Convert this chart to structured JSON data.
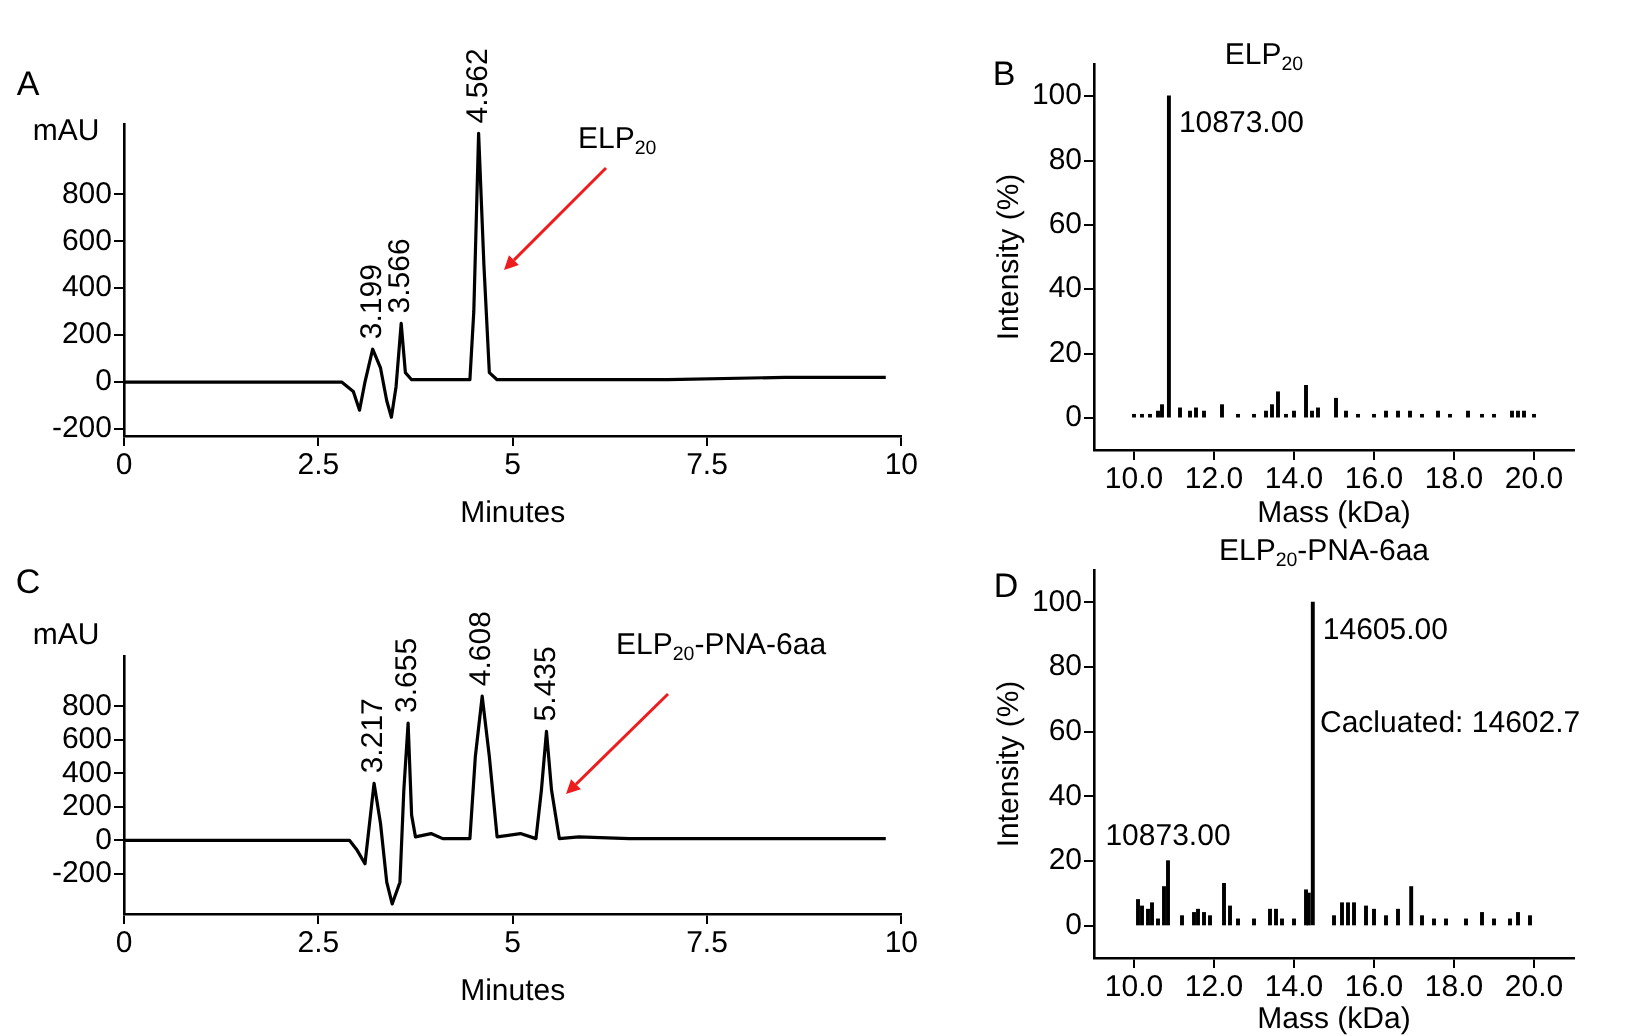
{
  "chart_data": [
    {
      "type": "line",
      "xlabel": "Minutes",
      "ylabel": "mAU",
      "annotations": [
        "A",
        "ELP$_{20}$",
        {
          "text": "3.199",
          "x": 3.199,
          "y": 140
        },
        {
          "text": "3.566",
          "x": 3.566,
          "y": 250
        },
        {
          "text": "4.562",
          "x": 4.562,
          "y": 1060
        }
      ],
      "xlim": [
        0,
        10
      ],
      "xticks": [
        0,
        2.5,
        5,
        7.5,
        10
      ],
      "ylim": [
        -230,
        1100
      ],
      "yticks": [
        -200,
        0,
        200,
        400,
        600,
        800
      ],
      "marker": "none",
      "series": [
        {
          "color": "#000000",
          "x": [
            0,
            1,
            2,
            2.8,
            2.95,
            3.03,
            3.1,
            3.199,
            3.3,
            3.38,
            3.44,
            3.5,
            3.566,
            3.62,
            3.7,
            4,
            4.45,
            4.5,
            4.562,
            4.63,
            4.7,
            4.8,
            5.5,
            7,
            8.5,
            9.8
          ],
          "values": [
            0,
            0,
            0,
            0,
            -40,
            -120,
            0,
            140,
            60,
            -80,
            -150,
            -20,
            250,
            40,
            10,
            10,
            10,
            300,
            1060,
            500,
            40,
            10,
            10,
            10,
            20,
            20
          ]
        }
      ]
    },
    {
      "type": "bar",
      "title": "ELP$_{20}$",
      "xlabel": "Mass (kDa)",
      "ylabel": "Intensity (%)",
      "annotations": [
        "B",
        {
          "text": "10873.00",
          "x": 10.873,
          "y": 100
        }
      ],
      "xlim": [
        9,
        21
      ],
      "xticks": [
        {
          "value": 10,
          "label": "10.0"
        },
        {
          "value": 12,
          "label": "12.0"
        },
        {
          "value": 14,
          "label": "14.0"
        },
        {
          "value": 16,
          "label": "16.0"
        },
        {
          "value": 18,
          "label": "18.0"
        },
        {
          "value": 20,
          "label": "20.0"
        }
      ],
      "ylim": [
        -10,
        110
      ],
      "yticks": [
        0,
        20,
        40,
        60,
        80,
        100
      ],
      "series": [
        {
          "color": "#000000",
          "x": [
            10,
            10.2,
            10.4,
            10.6,
            10.7,
            10.873,
            11.15,
            11.4,
            11.55,
            11.75,
            12.2,
            12.6,
            13,
            13.3,
            13.45,
            13.6,
            13.8,
            14,
            14.3,
            14.45,
            14.6,
            15.05,
            15.3,
            15.6,
            16,
            16.3,
            16.6,
            16.9,
            17.2,
            17.6,
            17.9,
            18.35,
            18.7,
            19,
            19.45,
            19.6,
            19.75,
            20
          ],
          "values": [
            1,
            1,
            1,
            2,
            4,
            100,
            3,
            2,
            3,
            2,
            4,
            1,
            1,
            2,
            4,
            8,
            1,
            2,
            10,
            2,
            3,
            6,
            2,
            1,
            1,
            2,
            2,
            2,
            1,
            2,
            1,
            2,
            1,
            1,
            2,
            2,
            2,
            1
          ]
        }
      ]
    },
    {
      "type": "line",
      "xlabel": "Minutes",
      "ylabel": "mAU",
      "annotations": [
        "C",
        "ELP$_{20}$-PNA-6aa",
        {
          "text": "3.217",
          "x": 3.217,
          "y": 340
        },
        {
          "text": "3.655",
          "x": 3.655,
          "y": 700
        },
        {
          "text": "4.608",
          "x": 4.608,
          "y": 860
        },
        {
          "text": "5.435",
          "x": 5.435,
          "y": 650
        }
      ],
      "xlim": [
        0,
        10
      ],
      "xticks": [
        0,
        2.5,
        5,
        7.5,
        10
      ],
      "ylim": [
        -440,
        1100
      ],
      "yticks": [
        -200,
        0,
        200,
        400,
        600,
        800
      ],
      "marker": "none",
      "series": [
        {
          "color": "#000000",
          "x": [
            0,
            1,
            2,
            2.9,
            3,
            3.1,
            3.217,
            3.3,
            3.38,
            3.45,
            3.55,
            3.6,
            3.655,
            3.7,
            3.75,
            3.95,
            4.1,
            4.45,
            4.52,
            4.608,
            4.7,
            4.8,
            5.1,
            5.3,
            5.37,
            5.435,
            5.5,
            5.6,
            5.85,
            6.5,
            8,
            9.8
          ],
          "values": [
            0,
            0,
            0,
            0,
            -60,
            -140,
            340,
            100,
            -250,
            -380,
            -250,
            300,
            700,
            150,
            20,
            40,
            10,
            10,
            500,
            860,
            500,
            20,
            40,
            10,
            300,
            650,
            300,
            10,
            20,
            10,
            10,
            10
          ]
        }
      ]
    },
    {
      "type": "bar",
      "title": "ELP$_{20}$-PNA-6aa",
      "xlabel": "Mass (kDa)",
      "ylabel": "Intensity (%)",
      "annotations": [
        "D",
        {
          "text": "14605.00",
          "x": 14.47,
          "y": 100
        },
        "Cacluated: 14602.7",
        {
          "text": "10873.00",
          "x": 10.85,
          "y": 20
        }
      ],
      "xlim": [
        9,
        21
      ],
      "xticks": [
        {
          "value": 10,
          "label": "10.0"
        },
        {
          "value": 12,
          "label": "12.0"
        },
        {
          "value": 14,
          "label": "14.0"
        },
        {
          "value": 16,
          "label": "16.0"
        },
        {
          "value": 18,
          "label": "18.0"
        },
        {
          "value": 20,
          "label": "20.0"
        }
      ],
      "ylim": [
        -10,
        110
      ],
      "yticks": [
        0,
        20,
        40,
        60,
        80,
        100
      ],
      "series": [
        {
          "color": "#000000",
          "x": [
            10.1,
            10.2,
            10.35,
            10.45,
            10.6,
            10.75,
            10.85,
            11.2,
            11.5,
            11.6,
            11.75,
            11.9,
            12.25,
            12.4,
            12.6,
            13,
            13.4,
            13.55,
            13.7,
            14,
            14.3,
            14.37,
            14.47,
            15,
            15.2,
            15.35,
            15.5,
            15.8,
            16,
            16.3,
            16.6,
            16.93,
            17.2,
            17.5,
            17.8,
            18.3,
            18.7,
            19,
            19.4,
            19.6,
            19.9
          ],
          "values": [
            8,
            6,
            5,
            7,
            2,
            12,
            20,
            3,
            4,
            5,
            4,
            3,
            13,
            6,
            2,
            2,
            5,
            5,
            2,
            2,
            11,
            10,
            100,
            3,
            7,
            7,
            7,
            6,
            5,
            3,
            5,
            12,
            3,
            2,
            2,
            2,
            4,
            2,
            2,
            4,
            3
          ]
        }
      ]
    }
  ]
}
